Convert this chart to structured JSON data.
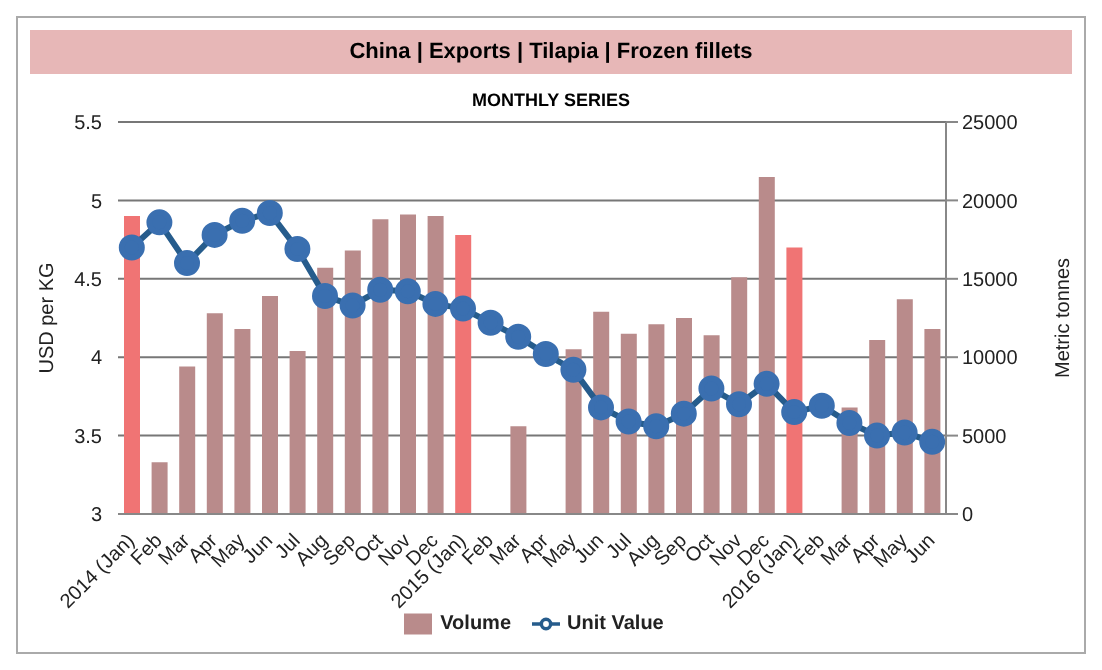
{
  "chart_data": {
    "type": "bar",
    "title": "China | Exports | Tilapia | Frozen fillets",
    "subtitle": "MONTHLY SERIES",
    "ylabel": "USD per KG",
    "y2label": "Metric tonnes",
    "categories": [
      "2014 (Jan)",
      "Feb",
      "Mar",
      "Apr",
      "May",
      "Jun",
      "Jul",
      "Aug",
      "Sep",
      "Oct",
      "Nov",
      "Dec",
      "2015 (Jan)",
      "Feb",
      "Mar",
      "Apr",
      "May",
      "Jun",
      "Jul",
      "Aug",
      "Sep",
      "Oct",
      "Nov",
      "Dec",
      "2016 (Jan)",
      "Feb",
      "Mar",
      "Apr",
      "May",
      "Jun"
    ],
    "series": [
      {
        "name": "Volume",
        "axis": "y2",
        "color": "#b98b8b",
        "colors": [
          "#f07474",
          "#b98b8b",
          "#b98b8b",
          "#b98b8b",
          "#b98b8b",
          "#b98b8b",
          "#b98b8b",
          "#b98b8b",
          "#b98b8b",
          "#b98b8b",
          "#b98b8b",
          "#b98b8b",
          "#f07474",
          "#b98b8b",
          "#b98b8b",
          "#b98b8b",
          "#b98b8b",
          "#b98b8b",
          "#b98b8b",
          "#b98b8b",
          "#b98b8b",
          "#b98b8b",
          "#b98b8b",
          "#b98b8b",
          "#f07474",
          "#b98b8b",
          "#b98b8b",
          "#b98b8b",
          "#b98b8b",
          "#b98b8b"
        ],
        "values": [
          19000,
          3300,
          9400,
          12800,
          11800,
          13900,
          10400,
          15700,
          16800,
          18800,
          19100,
          19000,
          17800,
          null,
          5600,
          null,
          10500,
          12900,
          11500,
          12100,
          12500,
          11400,
          15100,
          21500,
          17000,
          null,
          6800,
          11100,
          13700,
          11800
        ]
      },
      {
        "name": "Unit Value",
        "type": "line",
        "color": "#3a6fb0",
        "values": [
          4.7,
          4.86,
          4.6,
          4.78,
          4.87,
          4.92,
          4.69,
          4.39,
          4.33,
          4.43,
          4.42,
          4.34,
          4.31,
          4.22,
          4.13,
          4.02,
          3.92,
          3.68,
          3.59,
          3.56,
          3.64,
          3.8,
          3.7,
          3.83,
          3.65,
          3.69,
          3.58,
          3.5,
          3.52,
          3.46
        ]
      }
    ],
    "ylim": [
      3,
      5.5
    ],
    "yticks": [
      3,
      3.5,
      4,
      4.5,
      5,
      5.5
    ],
    "y2lim": [
      0,
      25000
    ],
    "y2ticks": [
      0,
      5000,
      10000,
      15000,
      20000,
      25000
    ],
    "grid": "y",
    "legend": "bottom",
    "marker": "circle"
  }
}
